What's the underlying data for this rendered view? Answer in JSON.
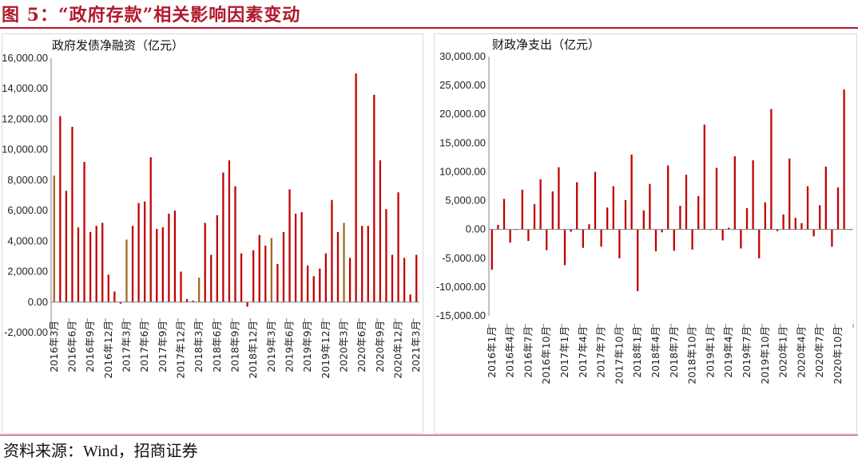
{
  "figure_title": "图 5：“政府存款”相关影响因素变动",
  "source": "资料来源：Wind，招商证券",
  "colors": {
    "accent": "#b2182b",
    "bar_red": "#c00000",
    "bar_olive": "#9c6b1e"
  },
  "chart_data": [
    {
      "type": "bar",
      "title": "政府发债净融资（亿元）",
      "ylim": [
        -2000,
        16000
      ],
      "yticks": [
        "16,000.00",
        "14,000.00",
        "12,000.00",
        "10,000.00",
        "8,000.00",
        "6,000.00",
        "4,000.00",
        "2,000.00",
        "0.00",
        "-2,000.00"
      ],
      "tick_labels": [
        "2016年3月",
        "2016年6月",
        "2016年9月",
        "2016年12月",
        "2017年3月",
        "2017年6月",
        "2017年9月",
        "2017年12月",
        "2018年3月",
        "2018年6月",
        "2018年9月",
        "2018年12月",
        "2019年3月",
        "2019年6月",
        "2019年9月",
        "2019年12月",
        "2020年3月",
        "2020年6月",
        "2020年9月",
        "2020年12月",
        "2021年3月"
      ],
      "categories": [
        "2016-03",
        "2016-04",
        "2016-05",
        "2016-06",
        "2016-07",
        "2016-08",
        "2016-09",
        "2016-10",
        "2016-11",
        "2016-12",
        "2017-01",
        "2017-02",
        "2017-03",
        "2017-04",
        "2017-05",
        "2017-06",
        "2017-07",
        "2017-08",
        "2017-09",
        "2017-10",
        "2017-11",
        "2017-12",
        "2018-01",
        "2018-02",
        "2018-03",
        "2018-04",
        "2018-05",
        "2018-06",
        "2018-07",
        "2018-08",
        "2018-09",
        "2018-10",
        "2018-11",
        "2018-12",
        "2019-01",
        "2019-02",
        "2019-03",
        "2019-04",
        "2019-05",
        "2019-06",
        "2019-07",
        "2019-08",
        "2019-09",
        "2019-10",
        "2019-11",
        "2019-12",
        "2020-01",
        "2020-02",
        "2020-03",
        "2020-04",
        "2020-05",
        "2020-06",
        "2020-07",
        "2020-08",
        "2020-09",
        "2020-10",
        "2020-11",
        "2020-12",
        "2021-01",
        "2021-02",
        "2021-03"
      ],
      "values": [
        8300,
        12200,
        7300,
        11500,
        4900,
        9200,
        4600,
        5000,
        5200,
        1800,
        700,
        -100,
        4100,
        5000,
        6500,
        6600,
        9500,
        4800,
        4900,
        5800,
        6000,
        2000,
        200,
        100,
        1600,
        5200,
        3100,
        5700,
        8500,
        9300,
        7600,
        3200,
        -300,
        3400,
        4400,
        3700,
        4200,
        2500,
        4600,
        7400,
        5800,
        5900,
        2400,
        1700,
        2200,
        3200,
        6700,
        4600,
        5200,
        2900,
        15000,
        5000,
        5000,
        13600,
        9300,
        6100,
        3100,
        7200,
        2900,
        500,
        3100
      ],
      "highlight": [
        "2016-03",
        "2017-03",
        "2018-03",
        "2019-03",
        "2020-03"
      ]
    },
    {
      "type": "bar",
      "title": "财政净支出（亿元）",
      "ylim": [
        -15000,
        30000
      ],
      "yticks": [
        "30,000.00",
        "25,000.00",
        "20,000.00",
        "15,000.00",
        "10,000.00",
        "5,000.00",
        "0.00",
        "-5,000.00",
        "-10,000.00",
        "-15,000.00"
      ],
      "tick_labels": [
        "2016年1月",
        "2016年4月",
        "2016年7月",
        "2016年10月",
        "2017年1月",
        "2017年4月",
        "2017年7月",
        "2017年10月",
        "2018年1月",
        "2018年4月",
        "2018年7月",
        "2018年10月",
        "2019年1月",
        "2019年4月",
        "2019年7月",
        "2019年10月",
        "2020年1月",
        "2020年4月",
        "2020年7月",
        "2020年10月"
      ],
      "categories": [
        "2016-01",
        "2016-02",
        "2016-03",
        "2016-04",
        "2016-05",
        "2016-06",
        "2016-07",
        "2016-08",
        "2016-09",
        "2016-10",
        "2016-11",
        "2016-12",
        "2017-01",
        "2017-02",
        "2017-03",
        "2017-04",
        "2017-05",
        "2017-06",
        "2017-07",
        "2017-08",
        "2017-09",
        "2017-10",
        "2017-11",
        "2017-12",
        "2018-01",
        "2018-02",
        "2018-03",
        "2018-04",
        "2018-05",
        "2018-06",
        "2018-07",
        "2018-08",
        "2018-09",
        "2018-10",
        "2018-11",
        "2018-12",
        "2019-01",
        "2019-02",
        "2019-03",
        "2019-04",
        "2019-05",
        "2019-06",
        "2019-07",
        "2019-08",
        "2019-09",
        "2019-10",
        "2019-11",
        "2019-12",
        "2020-01",
        "2020-02",
        "2020-03",
        "2020-04",
        "2020-05",
        "2020-06",
        "2020-07",
        "2020-08",
        "2020-09",
        "2020-10",
        "2020-11",
        "2020-12"
      ],
      "values": [
        -7000,
        800,
        5300,
        -2300,
        0,
        6900,
        -2000,
        4400,
        8700,
        -3600,
        6600,
        10800,
        -6200,
        -400,
        8200,
        -3200,
        900,
        10000,
        -3000,
        3800,
        7500,
        -5000,
        5100,
        13000,
        -10700,
        3300,
        7900,
        -3800,
        -500,
        11100,
        -3700,
        4100,
        9500,
        -3500,
        5800,
        18200,
        0,
        10700,
        -1900,
        300,
        12700,
        -3300,
        3700,
        12000,
        -5000,
        4700,
        20900,
        -300,
        2600,
        12300,
        2000,
        1100,
        7500,
        -1200,
        4200,
        10900,
        -3000,
        7300,
        24300,
        0
      ]
    }
  ]
}
